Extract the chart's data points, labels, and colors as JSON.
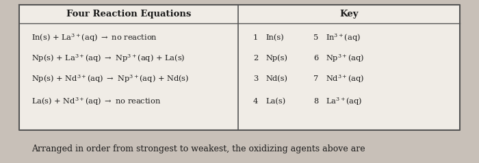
{
  "title_left": "Four Reaction Equations",
  "title_right": "Key",
  "reactions": [
    [
      "In(s) + La",
      "3+",
      "(aq) → no reaction"
    ],
    [
      "Np(s) + La",
      "3+",
      "(aq) → Np",
      "3+",
      "(aq) + La(s)"
    ],
    [
      "Np(s) + Nd",
      "3+",
      "(aq) → Np",
      "3+",
      "(aq) + Nd(s)"
    ],
    [
      "La(s) + Nd",
      "3+",
      "(aq) → no reaction"
    ]
  ],
  "key_numbers_left": [
    "1",
    "2",
    "3",
    "4"
  ],
  "key_labels_left": [
    "In(s)",
    "Np(s)",
    "Nd(s)",
    "La(s)"
  ],
  "key_numbers_right": [
    "5",
    "6",
    "7",
    "8"
  ],
  "key_labels_right": [
    [
      "In",
      "3+",
      "(aq)"
    ],
    [
      "Np",
      "3+",
      "(aq)"
    ],
    [
      "Nd",
      "3+",
      "(aq)"
    ],
    [
      "La",
      "3+",
      "(aq)"
    ]
  ],
  "footer": "Arranged in order from strongest to weakest, the oxidizing agents above are",
  "outer_bg": "#c8c0b8",
  "table_bg": "#f0ece6",
  "border_color": "#555555",
  "text_color": "#1a1a1a",
  "fig_w": 7.0,
  "fig_h": 2.38,
  "dpi": 100
}
